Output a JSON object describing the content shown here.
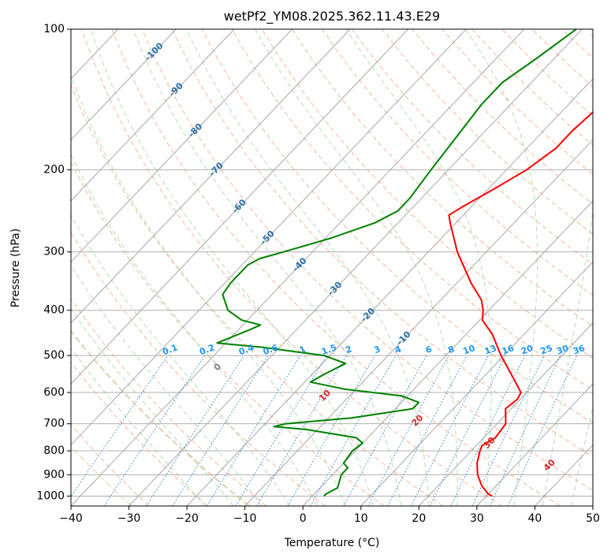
{
  "chart_data": {
    "type": "skew-t log-p diagram",
    "title": "wetPf2_YM08.2025.362.11.43.E29",
    "xlabel": "Temperature (°C)",
    "ylabel": "Pressure (hPa)",
    "xlim": [
      -40,
      50
    ],
    "ylim": [
      1050,
      100
    ],
    "x_ticks": [
      "−40",
      "−30",
      "−20",
      "−10",
      "0",
      "10",
      "20",
      "30",
      "40",
      "50"
    ],
    "x_tick_values": [
      -40,
      -30,
      -20,
      -10,
      0,
      10,
      20,
      30,
      40,
      50
    ],
    "y_ticks": [
      "100",
      "200",
      "300",
      "400",
      "500",
      "600",
      "700",
      "800",
      "900",
      "1000"
    ],
    "y_tick_values": [
      100,
      200,
      300,
      400,
      500,
      600,
      700,
      800,
      900,
      1000
    ],
    "grid": true,
    "isotherm_labels": [
      "-100",
      "-90",
      "-80",
      "-70",
      "-60",
      "-50",
      "-40",
      "-30",
      "-20",
      "-10"
    ],
    "isotherm_label_values": [
      -100,
      -90,
      -80,
      -70,
      -60,
      -50,
      -40,
      -30,
      -20,
      -10
    ],
    "mixing_ratio_labels": [
      "0.1",
      "0.2",
      "0.4",
      "0.6",
      "1",
      "1.5",
      "2",
      "3",
      "4",
      "6",
      "8",
      "10",
      "13",
      "16",
      "20",
      "25",
      "30",
      "36"
    ],
    "mixing_ratio_values": [
      0.1,
      0.2,
      0.4,
      0.6,
      1,
      1.5,
      2,
      3,
      4,
      6,
      8,
      10,
      13,
      16,
      20,
      25,
      30,
      36
    ],
    "moist_adiabat_labels": [
      "0",
      "10",
      "20",
      "30",
      "40"
    ],
    "moist_adiabat_values": [
      0,
      10,
      20,
      30,
      40
    ],
    "series": [
      {
        "name": "temperature",
        "color": "#ff0000",
        "points": [
          [
            1000,
            31
          ],
          [
            990,
            30
          ],
          [
            950,
            27.5
          ],
          [
            900,
            25
          ],
          [
            850,
            23
          ],
          [
            800,
            21.5
          ],
          [
            780,
            21
          ],
          [
            750,
            22
          ],
          [
            700,
            21.5
          ],
          [
            650,
            19
          ],
          [
            620,
            19.5
          ],
          [
            600,
            19
          ],
          [
            550,
            14.5
          ],
          [
            500,
            9.5
          ],
          [
            450,
            4.5
          ],
          [
            420,
            0.5
          ],
          [
            400,
            -1
          ],
          [
            380,
            -3
          ],
          [
            350,
            -7.5
          ],
          [
            300,
            -15
          ],
          [
            260,
            -21
          ],
          [
            250,
            -22.5
          ],
          [
            240,
            -21.5
          ],
          [
            220,
            -19
          ],
          [
            200,
            -16.5
          ],
          [
            180,
            -15
          ],
          [
            165,
            -15
          ],
          [
            150,
            -14.5
          ],
          [
            140,
            -14
          ],
          [
            130,
            -13.5
          ],
          [
            120,
            -11.5
          ],
          [
            110,
            -10
          ],
          [
            100,
            -8.5
          ]
        ]
      },
      {
        "name": "dewpoint",
        "color": "#008000",
        "points": [
          [
            1000,
            2
          ],
          [
            990,
            2
          ],
          [
            960,
            3
          ],
          [
            900,
            1.5
          ],
          [
            870,
            1.5
          ],
          [
            850,
            0
          ],
          [
            800,
            -0.5
          ],
          [
            770,
            0
          ],
          [
            750,
            -2
          ],
          [
            720,
            -12
          ],
          [
            710,
            -18
          ],
          [
            700,
            -16.5
          ],
          [
            680,
            -6
          ],
          [
            650,
            3
          ],
          [
            630,
            3
          ],
          [
            610,
            -1
          ],
          [
            590,
            -12
          ],
          [
            570,
            -19
          ],
          [
            550,
            -18
          ],
          [
            520,
            -16
          ],
          [
            500,
            -21
          ],
          [
            480,
            -33
          ],
          [
            470,
            -41.5
          ],
          [
            440,
            -38
          ],
          [
            430,
            -37
          ],
          [
            420,
            -41
          ],
          [
            400,
            -45
          ],
          [
            370,
            -48.5
          ],
          [
            350,
            -49
          ],
          [
            320,
            -49
          ],
          [
            310,
            -48
          ],
          [
            300,
            -45
          ],
          [
            280,
            -39
          ],
          [
            260,
            -34
          ],
          [
            245,
            -32
          ],
          [
            230,
            -32
          ],
          [
            200,
            -33
          ],
          [
            170,
            -34
          ],
          [
            145,
            -35
          ],
          [
            130,
            -35
          ],
          [
            115,
            -33
          ],
          [
            100,
            -31
          ]
        ]
      }
    ]
  }
}
